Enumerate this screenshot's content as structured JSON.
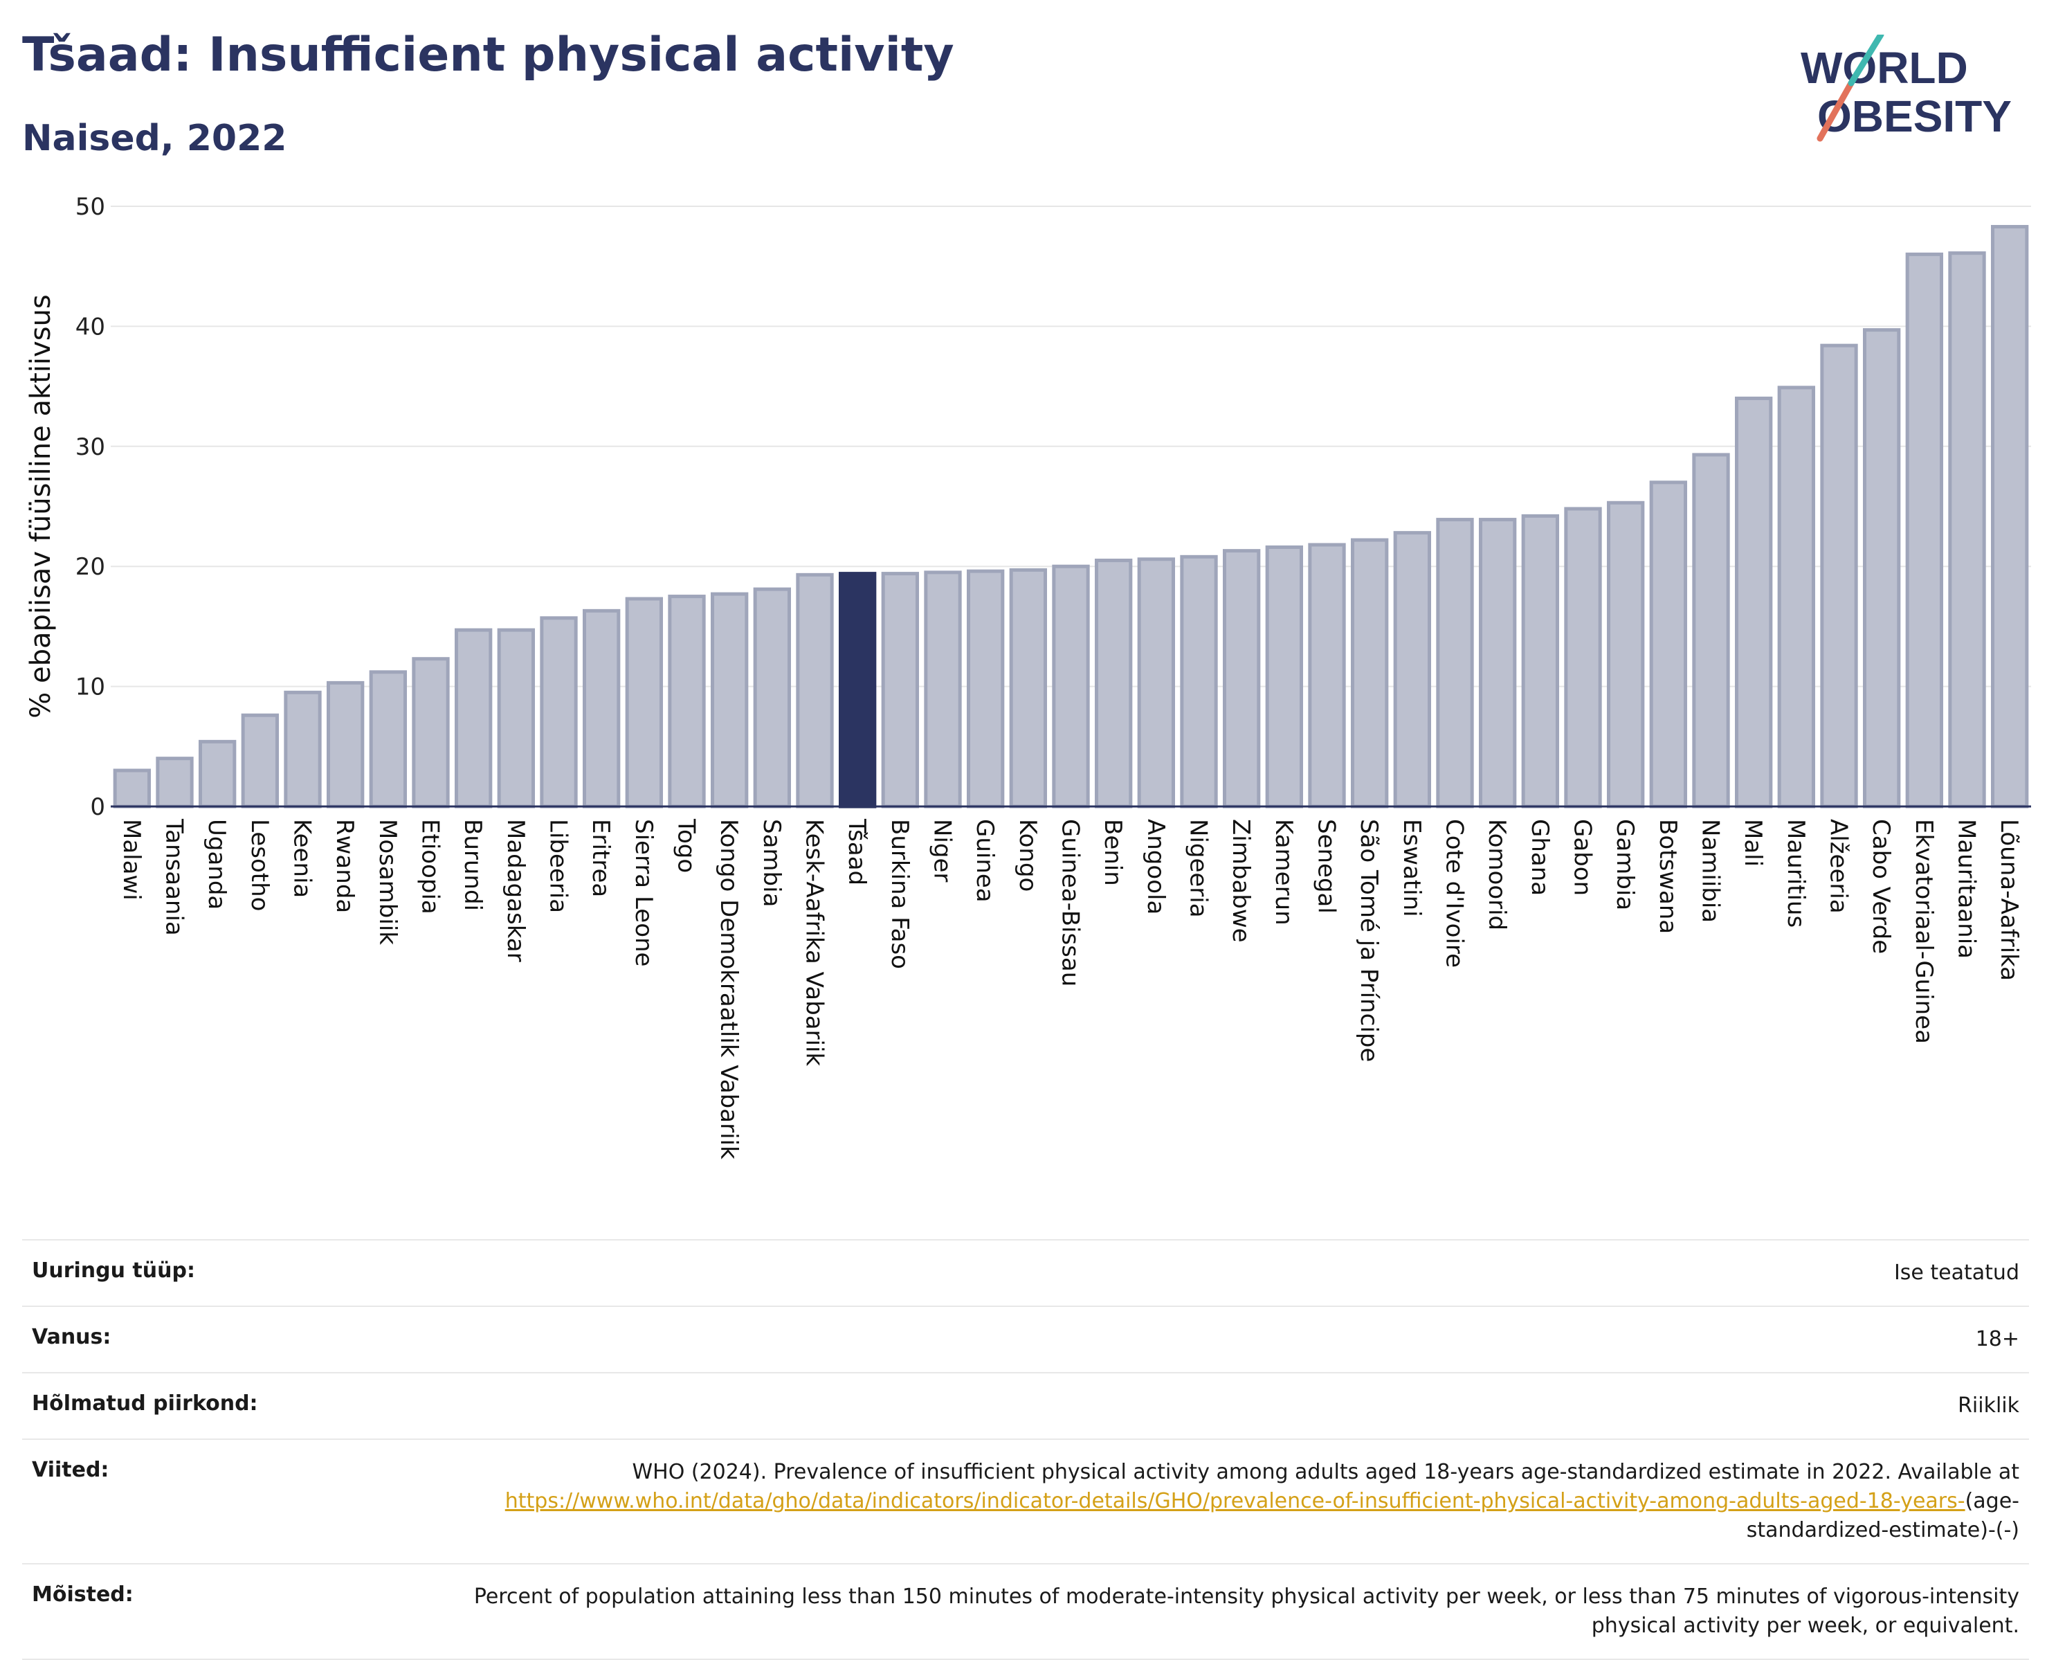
{
  "header": {
    "title": "Tšaad: Insufficient physical activity",
    "subtitle": "Naised, 2022"
  },
  "logo": {
    "line1": "WORLD",
    "line2": "OBESITY"
  },
  "colors": {
    "bar": "#bcc0cf",
    "bar_stroke": "#9fa5ba",
    "highlight": "#2b3461",
    "grid": "#e6e6e6"
  },
  "chart_data": {
    "type": "bar",
    "ylabel": "% ebapiisav füüsiline aktiivsus",
    "ylim": [
      0,
      50
    ],
    "yticks": [
      0,
      10,
      20,
      30,
      40,
      50
    ],
    "highlight": "Tšaad",
    "categories": [
      "Malawi",
      "Tansaania",
      "Uganda",
      "Lesotho",
      "Keenia",
      "Rwanda",
      "Mosambiik",
      "Etioopia",
      "Burundi",
      "Madagaskar",
      "Libeeria",
      "Eritrea",
      "Sierra Leone",
      "Togo",
      "Kongo Demokraatlik Vabariik",
      "Sambia",
      "Kesk-Aafrika Vabariik",
      "Tšaad",
      "Burkina Faso",
      "Niger",
      "Guinea",
      "Kongo",
      "Guinea-Bissau",
      "Benin",
      "Angoola",
      "Nigeeria",
      "Zimbabwe",
      "Kamerun",
      "Senegal",
      "São Tomé ja Príncipe",
      "Eswatini",
      "Cote d'Ivoire",
      "Komoorid",
      "Ghana",
      "Gabon",
      "Gambia",
      "Botswana",
      "Namiibia",
      "Mali",
      "Mauritius",
      "Alžeeria",
      "Cabo Verde",
      "Ekvatoriaal-Guinea",
      "Mauritaania",
      "Lõuna-Aafrika"
    ],
    "values": [
      3.0,
      4.0,
      5.4,
      7.6,
      9.5,
      10.3,
      11.2,
      12.3,
      14.7,
      14.7,
      15.7,
      16.3,
      17.3,
      17.5,
      17.7,
      18.1,
      19.3,
      19.4,
      19.4,
      19.5,
      19.6,
      19.7,
      20.0,
      20.5,
      20.6,
      20.8,
      21.3,
      21.6,
      21.8,
      22.2,
      22.8,
      23.9,
      23.9,
      24.2,
      24.8,
      25.3,
      27.0,
      29.3,
      34.0,
      34.9,
      38.4,
      39.7,
      46.0,
      46.1,
      48.3
    ]
  },
  "meta": [
    {
      "label": "Uuringu tüüp:",
      "value": "Ise teatatud"
    },
    {
      "label": "Vanus:",
      "value": "18+"
    },
    {
      "label": "Hõlmatud piirkond:",
      "value": "Riiklik"
    },
    {
      "label": "Viited:",
      "value": "WHO (2024). Prevalence of insufficient physical activity among adults aged 18-years age-standardized estimate in 2022. Available at",
      "link": "https://www.who.int/data/gho/data/indicators/indicator-details/GHO/prevalence-of-insufficient-physical-activity-among-adults-aged-18-years-",
      "after": "(age-standardized-estimate)-(-)"
    },
    {
      "label": "Mõisted:",
      "value": "Percent of population attaining less than 150 minutes of moderate-intensity physical activity per week, or less than 75 minutes of vigorous-intensity physical activity per week, or equivalent."
    }
  ]
}
